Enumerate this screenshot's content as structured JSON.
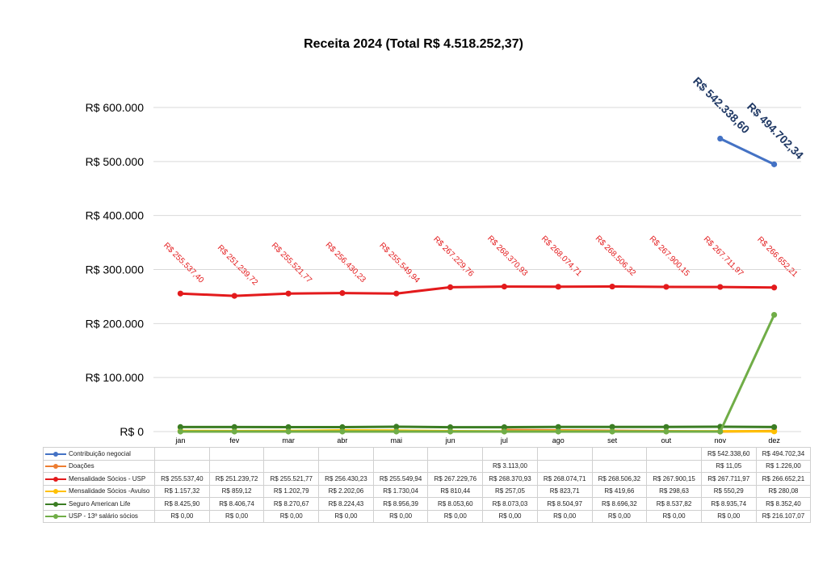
{
  "title": "Receita 2024 (Total R$ 4.518.252,37)",
  "chart_data": {
    "type": "line",
    "title": "Receita 2024 (Total R$ 4.518.252,37)",
    "categories": [
      "jan",
      "fev",
      "mar",
      "abr",
      "mai",
      "jun",
      "jul",
      "ago",
      "set",
      "out",
      "nov",
      "dez"
    ],
    "ylim": [
      0,
      600000
    ],
    "yticks": [
      0,
      100000,
      200000,
      300000,
      400000,
      500000,
      600000
    ],
    "ytick_labels": [
      "R$ 0",
      "R$ 100.000",
      "R$ 200.000",
      "R$ 300.000",
      "R$ 400.000",
      "R$ 500.000",
      "R$ 600.000"
    ],
    "grid": true,
    "legend": "data-table",
    "series": [
      {
        "name": "Contribuição negocial",
        "color": "#4472c4",
        "values": [
          null,
          null,
          null,
          null,
          null,
          null,
          null,
          null,
          null,
          null,
          542338.6,
          494702.34
        ],
        "cells": [
          "",
          "",
          "",
          "",
          "",
          "",
          "",
          "",
          "",
          "",
          "R$ 542.338,60",
          "R$ 494.702,34"
        ],
        "data_labels": [
          "",
          "",
          "",
          "",
          "",
          "",
          "",
          "",
          "",
          "",
          "R$ 542.338,60",
          "R$ 494.702,34"
        ],
        "label_color": "#1f3864"
      },
      {
        "name": "Doações",
        "color": "#ed7d31",
        "values": [
          null,
          null,
          null,
          null,
          null,
          null,
          3113.0,
          null,
          null,
          null,
          11.05,
          1226.0
        ],
        "cells": [
          "",
          "",
          "",
          "",
          "",
          "",
          "R$ 3.113,00",
          "",
          "",
          "",
          "R$ 11,05",
          "R$ 1.226,00"
        ],
        "data_labels": []
      },
      {
        "name": "Mensalidade Sócios - USP",
        "color": "#e31a1c",
        "values": [
          255537.4,
          251239.72,
          255521.77,
          256430.23,
          255549.94,
          267229.76,
          268370.93,
          268074.71,
          268506.32,
          267900.15,
          267711.97,
          266652.21
        ],
        "cells": [
          "R$ 255.537,40",
          "R$ 251.239,72",
          "R$ 255.521,77",
          "R$ 256.430,23",
          "R$ 255.549,94",
          "R$ 267.229,76",
          "R$ 268.370,93",
          "R$ 268.074,71",
          "R$ 268.506,32",
          "R$ 267.900,15",
          "R$ 267.711,97",
          "R$ 266.652,21"
        ],
        "data_labels": [
          "R$ 255.537,40",
          "R$ 251.239,72",
          "R$ 255.521,77",
          "R$ 256.430,23",
          "R$ 255.549,94",
          "R$ 267.229,76",
          "R$ 268.370,93",
          "R$ 268.074,71",
          "R$ 268.506,32",
          "R$ 267.900,15",
          "R$ 267.711,97",
          "R$ 266.652,21"
        ],
        "label_color": "#e31a1c"
      },
      {
        "name": "Mensalidade Sócios -Avulso",
        "color": "#ffc000",
        "values": [
          1157.32,
          859.12,
          1202.79,
          2202.06,
          1730.04,
          810.44,
          257.05,
          823.71,
          419.66,
          298.63,
          550.29,
          280.08
        ],
        "cells": [
          "R$ 1.157,32",
          "R$ 859,12",
          "R$ 1.202,79",
          "R$ 2.202,06",
          "R$ 1.730,04",
          "R$ 810,44",
          "R$ 257,05",
          "R$ 823,71",
          "R$ 419,66",
          "R$ 298,63",
          "R$ 550,29",
          "R$ 280,08"
        ],
        "data_labels": []
      },
      {
        "name": "Seguro American Life",
        "color": "#3b7d23",
        "values": [
          8425.9,
          8406.74,
          8270.67,
          8224.43,
          8956.39,
          8053.6,
          8073.03,
          8504.97,
          8696.32,
          8537.82,
          8935.74,
          8352.4
        ],
        "cells": [
          "R$ 8.425,90",
          "R$ 8.406,74",
          "R$ 8.270,67",
          "R$ 8.224,43",
          "R$ 8.956,39",
          "R$ 8.053,60",
          "R$ 8.073,03",
          "R$ 8.504,97",
          "R$ 8.696,32",
          "R$ 8.537,82",
          "R$ 8.935,74",
          "R$ 8.352,40"
        ],
        "data_labels": []
      },
      {
        "name": "USP - 13º salário sócios",
        "color": "#70ad47",
        "values": [
          0,
          0,
          0,
          0,
          0,
          0,
          0,
          0,
          0,
          0,
          0,
          216107.07
        ],
        "cells": [
          "R$ 0,00",
          "R$ 0,00",
          "R$ 0,00",
          "R$ 0,00",
          "R$ 0,00",
          "R$ 0,00",
          "R$ 0,00",
          "R$ 0,00",
          "R$ 0,00",
          "R$ 0,00",
          "R$ 0,00",
          "R$ 216.107,07"
        ],
        "data_labels": []
      }
    ]
  }
}
